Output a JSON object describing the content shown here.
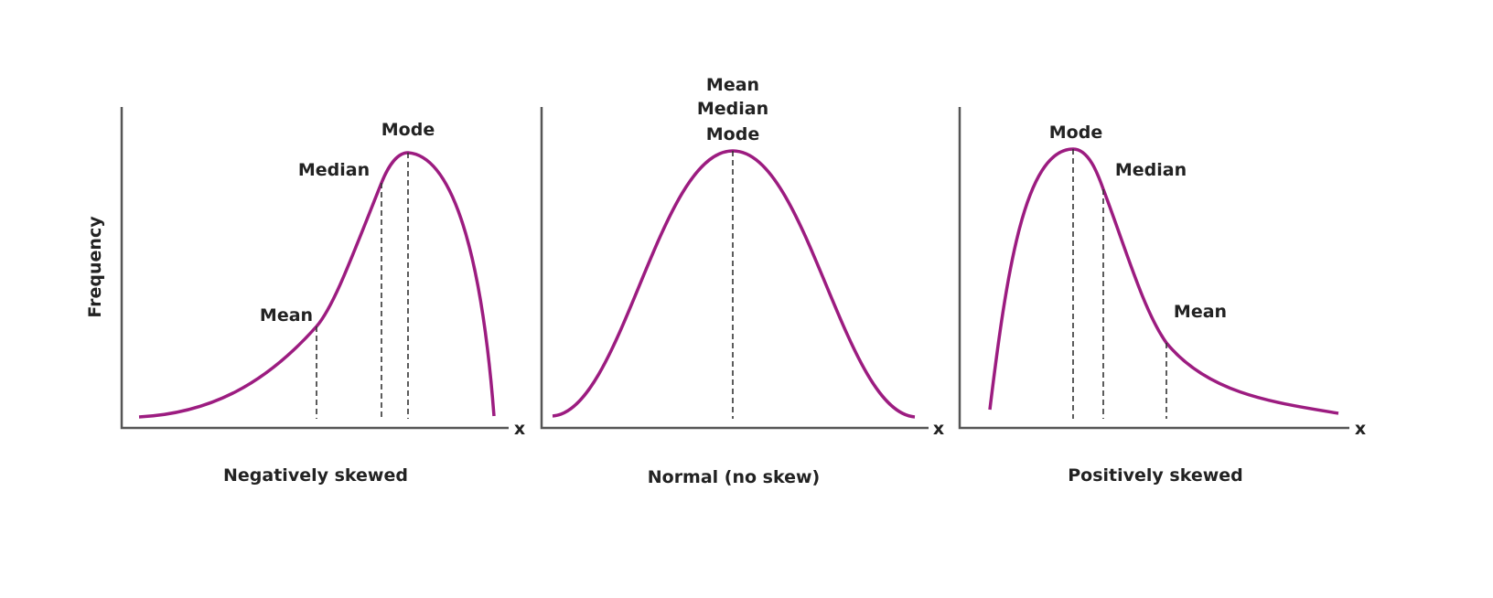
{
  "curve_color": "#9c1c80",
  "y_axis_label": "Frequency",
  "x_axis_symbol": "x",
  "panels": [
    {
      "title": "Negatively skewed",
      "labels": {
        "mean": "Mean",
        "median": "Median",
        "mode": "Mode"
      }
    },
    {
      "title": "Normal (no skew)",
      "labels": {
        "mean": "Mean",
        "median": "Median",
        "mode": "Mode"
      }
    },
    {
      "title": "Positively skewed",
      "labels": {
        "mean": "Mean",
        "median": "Median",
        "mode": "Mode"
      }
    }
  ]
}
